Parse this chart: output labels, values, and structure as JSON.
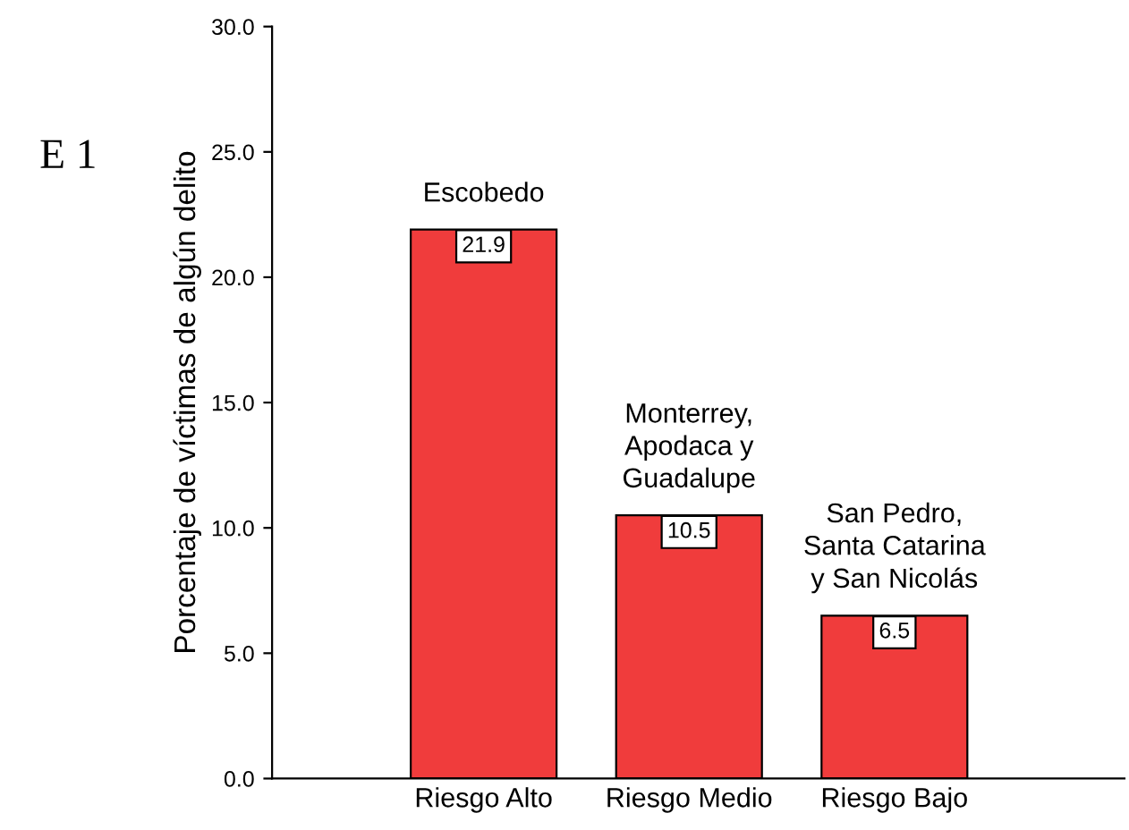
{
  "chart_data": {
    "type": "bar",
    "ylabel": "Porcentaje de víctimas de algún delito",
    "categories": [
      "Riesgo Alto",
      "Riesgo Medio",
      "Riesgo Bajo"
    ],
    "values": [
      21.9,
      10.5,
      6.5
    ],
    "value_labels": [
      "21.9",
      "10.5",
      "6.5"
    ],
    "color": "#f03c3c",
    "ylim": [
      0,
      30
    ],
    "yticks": [
      {
        "value": 0,
        "label": "0.0"
      },
      {
        "value": 5,
        "label": "5.0"
      },
      {
        "value": 10,
        "label": "10.0"
      },
      {
        "value": 15,
        "label": "15.0"
      },
      {
        "value": 20,
        "label": "20.0"
      },
      {
        "value": 25,
        "label": "25.0"
      },
      {
        "value": 30,
        "label": "30.0"
      }
    ],
    "grid": false,
    "annotations": [
      "E 1",
      "Escobedo",
      "Monterrey,\nApodaca y\nGuadalupe",
      "San Pedro,\nSanta Catarina\ny San Nicolás"
    ]
  }
}
